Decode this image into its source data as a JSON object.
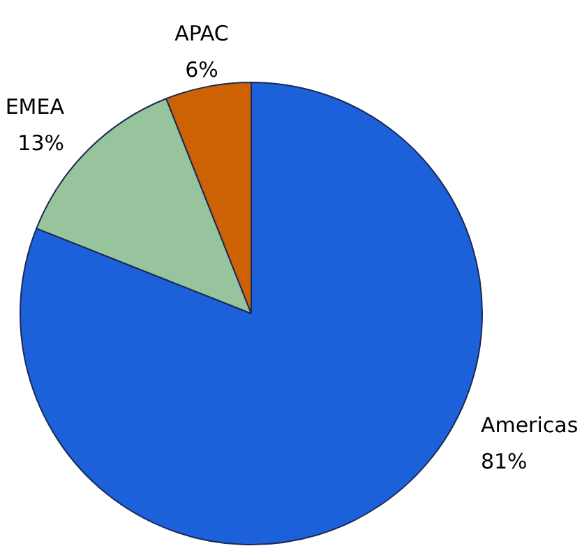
{
  "chart_data": {
    "type": "pie",
    "categories": [
      "Americas",
      "EMEA",
      "APAC"
    ],
    "values": [
      81,
      13,
      6
    ],
    "colors": [
      "#1c61d9",
      "#97c49c",
      "#cc6204"
    ],
    "value_labels": [
      "81%",
      "13%",
      "6%"
    ],
    "legend": false
  }
}
